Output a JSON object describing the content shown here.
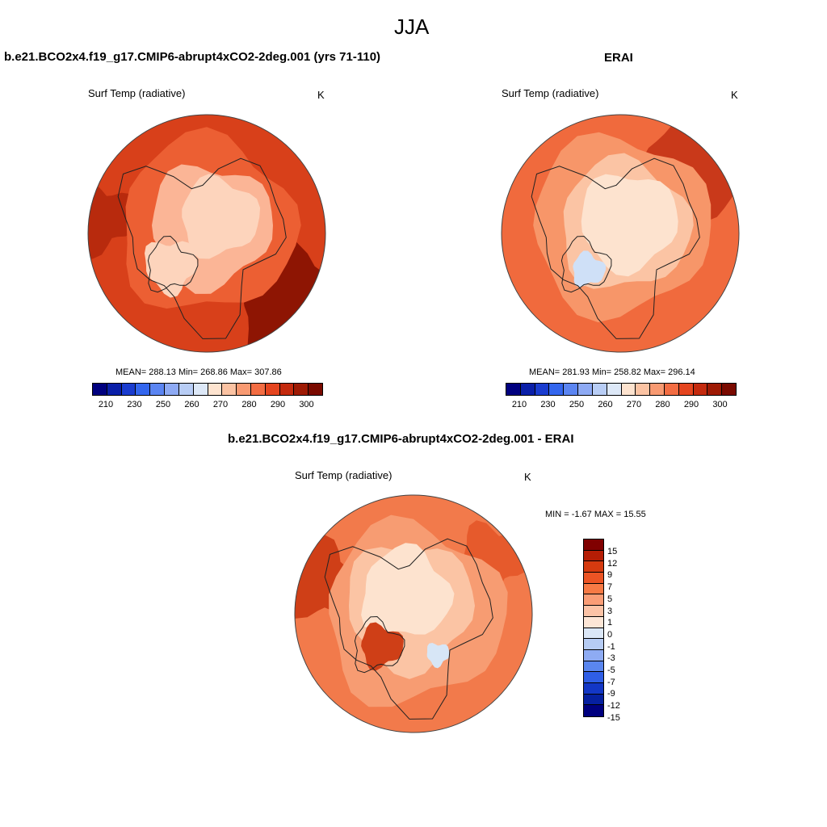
{
  "figure": {
    "title": "JJA"
  },
  "panels": [
    {
      "title": "b.e21.BCO2x4.f19_g17.CMIP6-abrupt4xCO2-2deg.001 (yrs 71-110)",
      "variable": "Surf Temp (radiative)",
      "units": "K",
      "stats": "MEAN= 288.13  Min= 268.86  Max= 307.86",
      "colorbar_ticks": [
        "210",
        "230",
        "250",
        "260",
        "270",
        "280",
        "290",
        "300"
      ],
      "colorbar_colors": [
        "#00007f",
        "#0a1fa8",
        "#1a3ccf",
        "#3366ee",
        "#5b85f2",
        "#8eaaf4",
        "#b8cdf5",
        "#dde8f7",
        "#fde3cf",
        "#fbc3a3",
        "#f89a72",
        "#f36d43",
        "#e5451f",
        "#c42a0e",
        "#9e1a04",
        "#7a0a00"
      ],
      "map_colors": [
        "#fdd4bc",
        "#fbb596",
        "#f58a62",
        "#ec5f33",
        "#d8401a",
        "#b82a0d",
        "#8e1503"
      ]
    },
    {
      "title": "ERAI",
      "variable": "Surf Temp (radiative)",
      "units": "K",
      "stats": "MEAN= 281.93  Min= 258.82  Max= 296.14",
      "colorbar_ticks": [
        "210",
        "230",
        "250",
        "260",
        "270",
        "280",
        "290",
        "300"
      ],
      "colorbar_colors": [
        "#00007f",
        "#0a1fa8",
        "#1a3ccf",
        "#3366ee",
        "#5b85f2",
        "#8eaaf4",
        "#b8cdf5",
        "#dde8f7",
        "#fde3cf",
        "#fbc3a3",
        "#f89a72",
        "#f36d43",
        "#e5451f",
        "#c42a0e",
        "#9e1a04",
        "#7a0a00"
      ],
      "map_colors": [
        "#cfe0f7",
        "#fde3cf",
        "#fbc4a4",
        "#f79669",
        "#f06a3d",
        "#e0511f",
        "#c9391a"
      ]
    },
    {
      "title": "b.e21.BCO2x4.f19_g17.CMIP6-abrupt4xCO2-2deg.001 - ERAI",
      "variable": "Surf Temp (radiative)",
      "units": "K",
      "stats": "MIN =  -1.67 MAX =  15.55",
      "colorbar_ticks": [
        "15",
        "12",
        "9",
        "7",
        "5",
        "3",
        "1",
        "0",
        "-1",
        "-3",
        "-5",
        "-7",
        "-9",
        "-12",
        "-15"
      ],
      "colorbar_colors": [
        "#800000",
        "#b51d05",
        "#d63a0f",
        "#ec5424",
        "#f77a45",
        "#fa9d76",
        "#fcc3a6",
        "#fde6d6",
        "#dbe7f7",
        "#b6ccf4",
        "#8eabf3",
        "#5a86ef",
        "#2f5ee6",
        "#1337c6",
        "#0620a0",
        "#00007f"
      ],
      "map_colors": [
        "#fde3cf",
        "#fbc4a4",
        "#f79c72",
        "#f27a4b",
        "#e65a2c",
        "#cf3f17",
        "#d7e6f6"
      ]
    }
  ]
}
